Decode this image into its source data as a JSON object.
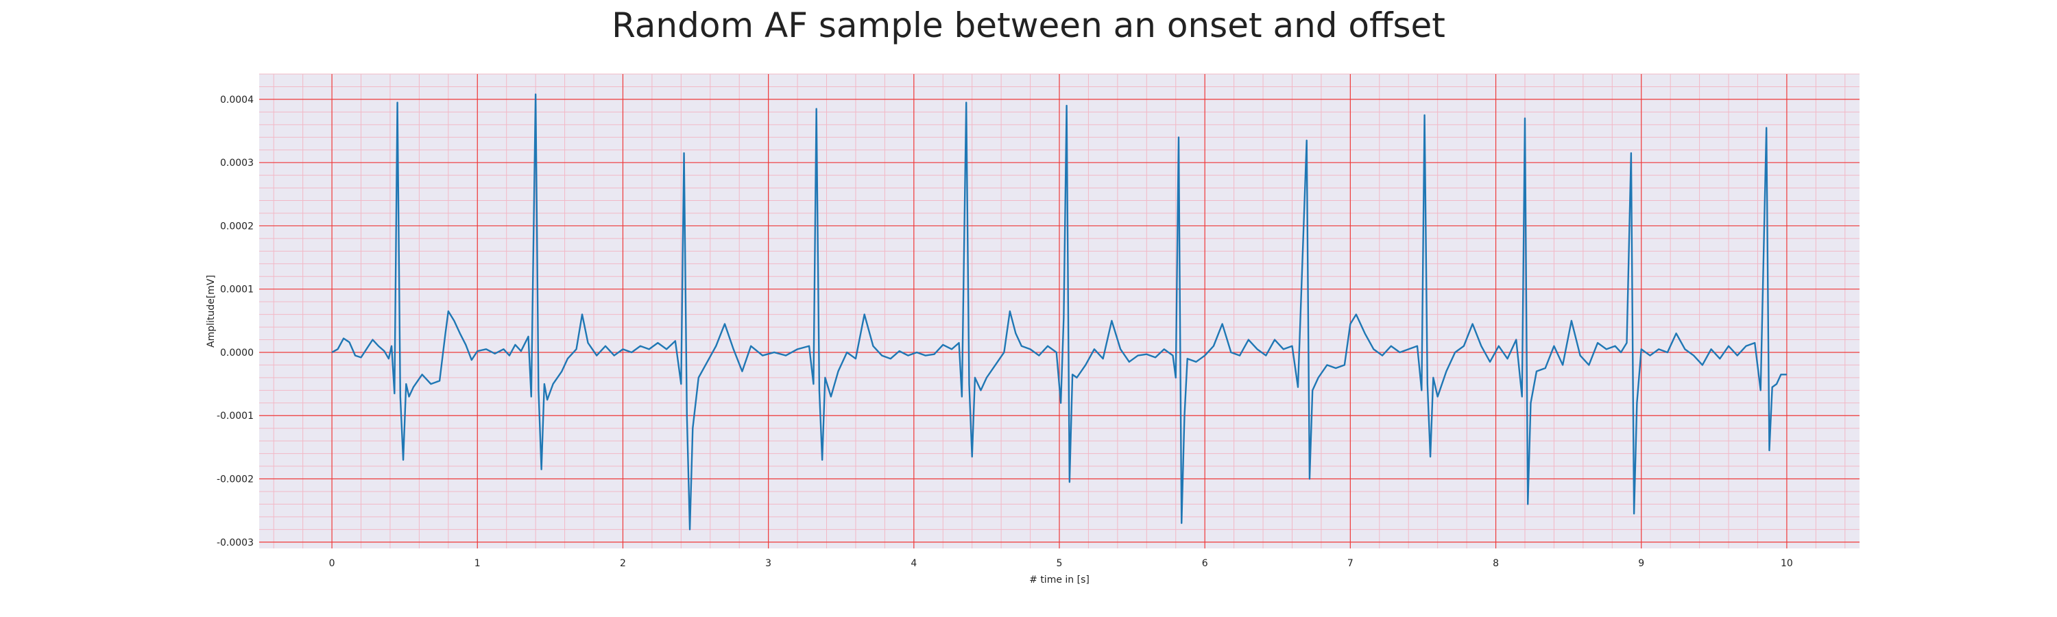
{
  "chart_data": {
    "type": "line",
    "title": "Random AF sample between an onset and offset",
    "xlabel": "# time in [s]",
    "ylabel": "Amplitude[mV]",
    "xlim": [
      -0.5,
      10.5
    ],
    "ylim": [
      -0.00031,
      0.00044
    ],
    "x_ticks": [
      0,
      1,
      2,
      3,
      4,
      5,
      6,
      7,
      8,
      9,
      10
    ],
    "x_tick_labels": [
      "0",
      "1",
      "2",
      "3",
      "4",
      "5",
      "6",
      "7",
      "8",
      "9",
      "10"
    ],
    "y_ticks": [
      -0.0003,
      -0.0002,
      -0.0001,
      0.0,
      0.0001,
      0.0002,
      0.0003,
      0.0004
    ],
    "y_tick_labels": [
      "-0.0003",
      "-0.0002",
      "-0.0001",
      "0.0000",
      "0.0001",
      "0.0002",
      "0.0003",
      "0.0004"
    ],
    "grid": "major and minor, red on lavender background",
    "colors": {
      "line": "#1f77b4",
      "major_grid": "#ee3b3b",
      "minor_grid": "#f2b8c6",
      "background": "#eae8f2"
    },
    "series": [
      {
        "points": [
          [
            0.0,
            0.0
          ],
          [
            0.04,
            5e-06
          ],
          [
            0.08,
            2.2e-05
          ],
          [
            0.12,
            1.6e-05
          ],
          [
            0.16,
            -5e-06
          ],
          [
            0.2,
            -8e-06
          ],
          [
            0.24,
            6e-06
          ],
          [
            0.28,
            2e-05
          ],
          [
            0.32,
            1e-05
          ],
          [
            0.36,
            2e-06
          ],
          [
            0.39,
            -1e-05
          ],
          [
            0.41,
            1e-05
          ],
          [
            0.43,
            -6.5e-05
          ],
          [
            0.45,
            0.000395
          ],
          [
            0.47,
            -7e-05
          ],
          [
            0.49,
            -0.00017
          ],
          [
            0.51,
            -5e-05
          ],
          [
            0.53,
            -7e-05
          ],
          [
            0.56,
            -5.5e-05
          ],
          [
            0.62,
            -3.5e-05
          ],
          [
            0.68,
            -5e-05
          ],
          [
            0.74,
            -4.5e-05
          ],
          [
            0.78,
            3e-05
          ],
          [
            0.8,
            6.5e-05
          ],
          [
            0.84,
            5e-05
          ],
          [
            0.88,
            3e-05
          ],
          [
            0.92,
            1.2e-05
          ],
          [
            0.96,
            -1.2e-05
          ],
          [
            1.0,
            2e-06
          ],
          [
            1.06,
            5e-06
          ],
          [
            1.12,
            -2e-06
          ],
          [
            1.18,
            5e-06
          ],
          [
            1.22,
            -5e-06
          ],
          [
            1.26,
            1.2e-05
          ],
          [
            1.3,
            2e-06
          ],
          [
            1.35,
            2.5e-05
          ],
          [
            1.37,
            -7e-05
          ],
          [
            1.4,
            0.000408
          ],
          [
            1.42,
            -6e-05
          ],
          [
            1.44,
            -0.000185
          ],
          [
            1.46,
            -5e-05
          ],
          [
            1.48,
            -7.5e-05
          ],
          [
            1.52,
            -5e-05
          ],
          [
            1.58,
            -3e-05
          ],
          [
            1.62,
            -1e-05
          ],
          [
            1.68,
            5e-06
          ],
          [
            1.72,
            6e-05
          ],
          [
            1.76,
            1.5e-05
          ],
          [
            1.82,
            -5e-06
          ],
          [
            1.88,
            1e-05
          ],
          [
            1.94,
            -5e-06
          ],
          [
            2.0,
            5e-06
          ],
          [
            2.06,
            0.0
          ],
          [
            2.12,
            1e-05
          ],
          [
            2.18,
            5e-06
          ],
          [
            2.24,
            1.5e-05
          ],
          [
            2.3,
            5e-06
          ],
          [
            2.36,
            1.8e-05
          ],
          [
            2.4,
            -5e-05
          ],
          [
            2.42,
            0.000315
          ],
          [
            2.44,
            -0.0001
          ],
          [
            2.46,
            -0.00028
          ],
          [
            2.48,
            -0.00012
          ],
          [
            2.52,
            -4e-05
          ],
          [
            2.58,
            -1.5e-05
          ],
          [
            2.64,
            1e-05
          ],
          [
            2.7,
            4.5e-05
          ],
          [
            2.76,
            5e-06
          ],
          [
            2.82,
            -3e-05
          ],
          [
            2.88,
            1e-05
          ],
          [
            2.96,
            -5e-06
          ],
          [
            3.04,
            0.0
          ],
          [
            3.12,
            -5e-06
          ],
          [
            3.2,
            5e-06
          ],
          [
            3.28,
            1e-05
          ],
          [
            3.31,
            -5e-05
          ],
          [
            3.33,
            0.000385
          ],
          [
            3.35,
            -6e-05
          ],
          [
            3.37,
            -0.00017
          ],
          [
            3.39,
            -4e-05
          ],
          [
            3.43,
            -7e-05
          ],
          [
            3.48,
            -3e-05
          ],
          [
            3.54,
            0.0
          ],
          [
            3.6,
            -1e-05
          ],
          [
            3.66,
            6e-05
          ],
          [
            3.72,
            1e-05
          ],
          [
            3.78,
            -5e-06
          ],
          [
            3.84,
            -1e-05
          ],
          [
            3.9,
            2e-06
          ],
          [
            3.96,
            -5e-06
          ],
          [
            4.02,
            0.0
          ],
          [
            4.08,
            -5e-06
          ],
          [
            4.14,
            -3e-06
          ],
          [
            4.2,
            1.2e-05
          ],
          [
            4.26,
            5e-06
          ],
          [
            4.31,
            1.5e-05
          ],
          [
            4.33,
            -7e-05
          ],
          [
            4.36,
            0.000395
          ],
          [
            4.38,
            -5e-05
          ],
          [
            4.4,
            -0.000165
          ],
          [
            4.42,
            -4e-05
          ],
          [
            4.46,
            -6e-05
          ],
          [
            4.5,
            -4e-05
          ],
          [
            4.56,
            -2e-05
          ],
          [
            4.62,
            0.0
          ],
          [
            4.66,
            6.5e-05
          ],
          [
            4.7,
            3e-05
          ],
          [
            4.74,
            1e-05
          ],
          [
            4.8,
            5e-06
          ],
          [
            4.86,
            -5e-06
          ],
          [
            4.92,
            1e-05
          ],
          [
            4.98,
            0.0
          ],
          [
            5.01,
            -8e-05
          ],
          [
            5.03,
            5.5e-05
          ],
          [
            5.05,
            0.00039
          ],
          [
            5.07,
            -0.000205
          ],
          [
            5.09,
            -3.5e-05
          ],
          [
            5.12,
            -4e-05
          ],
          [
            5.18,
            -2e-05
          ],
          [
            5.24,
            5e-06
          ],
          [
            5.3,
            -1e-05
          ],
          [
            5.36,
            5e-05
          ],
          [
            5.42,
            5e-06
          ],
          [
            5.48,
            -1.5e-05
          ],
          [
            5.54,
            -5e-06
          ],
          [
            5.6,
            -3e-06
          ],
          [
            5.66,
            -8e-06
          ],
          [
            5.72,
            5e-06
          ],
          [
            5.78,
            -5e-06
          ],
          [
            5.8,
            -4e-05
          ],
          [
            5.82,
            0.00034
          ],
          [
            5.84,
            -0.00027
          ],
          [
            5.86,
            -0.0001
          ],
          [
            5.88,
            -1e-05
          ],
          [
            5.94,
            -1.5e-05
          ],
          [
            6.0,
            -5e-06
          ],
          [
            6.06,
            1e-05
          ],
          [
            6.12,
            4.5e-05
          ],
          [
            6.18,
            0.0
          ],
          [
            6.24,
            -5e-06
          ],
          [
            6.3,
            2e-05
          ],
          [
            6.36,
            5e-06
          ],
          [
            6.42,
            -5e-06
          ],
          [
            6.48,
            2e-05
          ],
          [
            6.54,
            5e-06
          ],
          [
            6.6,
            1e-05
          ],
          [
            6.64,
            -5.5e-05
          ],
          [
            6.7,
            0.000335
          ],
          [
            6.72,
            -0.0002
          ],
          [
            6.74,
            -6e-05
          ],
          [
            6.78,
            -4e-05
          ],
          [
            6.84,
            -2e-05
          ],
          [
            6.9,
            -2.5e-05
          ],
          [
            6.96,
            -2e-05
          ],
          [
            7.0,
            4.5e-05
          ],
          [
            7.04,
            6e-05
          ],
          [
            7.1,
            3e-05
          ],
          [
            7.16,
            5e-06
          ],
          [
            7.22,
            -5e-06
          ],
          [
            7.28,
            1e-05
          ],
          [
            7.34,
            0.0
          ],
          [
            7.4,
            5e-06
          ],
          [
            7.46,
            1e-05
          ],
          [
            7.49,
            -6e-05
          ],
          [
            7.51,
            0.000375
          ],
          [
            7.53,
            -5e-05
          ],
          [
            7.55,
            -0.000165
          ],
          [
            7.57,
            -4e-05
          ],
          [
            7.6,
            -7e-05
          ],
          [
            7.66,
            -3e-05
          ],
          [
            7.72,
            0.0
          ],
          [
            7.78,
            1e-05
          ],
          [
            7.84,
            4.5e-05
          ],
          [
            7.9,
            1e-05
          ],
          [
            7.96,
            -1.5e-05
          ],
          [
            8.02,
            1e-05
          ],
          [
            8.08,
            -1e-05
          ],
          [
            8.14,
            2e-05
          ],
          [
            8.18,
            -7e-05
          ],
          [
            8.2,
            0.00037
          ],
          [
            8.22,
            -0.00024
          ],
          [
            8.24,
            -8e-05
          ],
          [
            8.28,
            -3e-05
          ],
          [
            8.34,
            -2.5e-05
          ],
          [
            8.4,
            1e-05
          ],
          [
            8.46,
            -2e-05
          ],
          [
            8.52,
            5e-05
          ],
          [
            8.58,
            -5e-06
          ],
          [
            8.64,
            -2e-05
          ],
          [
            8.7,
            1.5e-05
          ],
          [
            8.76,
            5e-06
          ],
          [
            8.82,
            1e-05
          ],
          [
            8.86,
            0.0
          ],
          [
            8.9,
            1.5e-05
          ],
          [
            8.93,
            0.000315
          ],
          [
            8.95,
            -0.000255
          ],
          [
            8.97,
            -8e-05
          ],
          [
            9.0,
            5e-06
          ],
          [
            9.06,
            -5e-06
          ],
          [
            9.12,
            5e-06
          ],
          [
            9.18,
            0.0
          ],
          [
            9.24,
            3e-05
          ],
          [
            9.3,
            5e-06
          ],
          [
            9.36,
            -5e-06
          ],
          [
            9.42,
            -2e-05
          ],
          [
            9.48,
            5e-06
          ],
          [
            9.54,
            -1e-05
          ],
          [
            9.6,
            1e-05
          ],
          [
            9.66,
            -5e-06
          ],
          [
            9.72,
            1e-05
          ],
          [
            9.78,
            1.5e-05
          ],
          [
            9.82,
            -6e-05
          ],
          [
            9.86,
            0.000355
          ],
          [
            9.88,
            -0.000155
          ],
          [
            9.9,
            -5.5e-05
          ],
          [
            9.93,
            -5e-05
          ],
          [
            9.96,
            -3.5e-05
          ],
          [
            10.0,
            -3.5e-05
          ]
        ]
      }
    ]
  }
}
